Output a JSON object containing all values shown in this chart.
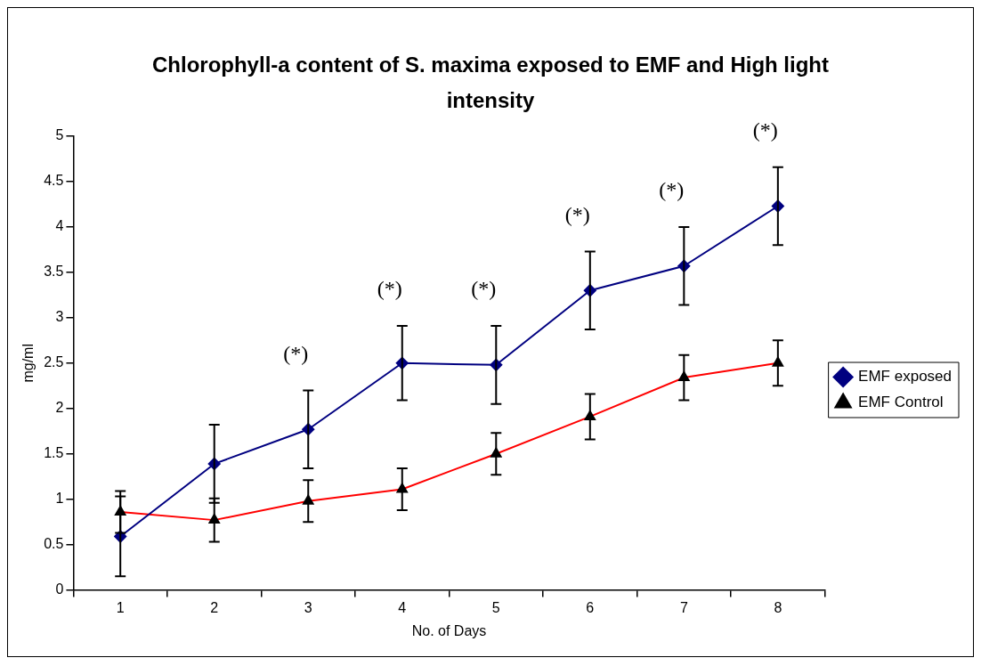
{
  "chart_data": {
    "type": "line",
    "title": "Chlorophyll-a content of S. maxima exposed to EMF and High light intensity",
    "xlabel": "No. of Days",
    "ylabel": "mg/ml",
    "categories": [
      "1",
      "2",
      "3",
      "4",
      "5",
      "6",
      "7",
      "8"
    ],
    "series": [
      {
        "name": "EMF exposed",
        "color": "#000080",
        "marker": "diamond",
        "values": [
          0.59,
          1.39,
          1.77,
          2.5,
          2.48,
          3.3,
          3.57,
          4.23
        ],
        "errors": [
          0.44,
          0.43,
          0.43,
          0.41,
          0.43,
          0.43,
          0.43,
          0.43
        ]
      },
      {
        "name": "EMF Control",
        "color": "#ff0000",
        "marker": "triangle",
        "colors": [
          "#000000",
          "#000000",
          "#000000",
          "#000000",
          "#000000",
          "#000000",
          "#000000",
          "#000000"
        ],
        "values": [
          0.86,
          0.77,
          0.98,
          1.11,
          1.5,
          1.91,
          2.34,
          2.5
        ],
        "errors": [
          0.23,
          0.24,
          0.23,
          0.23,
          0.23,
          0.25,
          0.25,
          0.25
        ]
      }
    ],
    "ylim": [
      0,
      5
    ],
    "yticks": [
      0,
      0.5,
      1,
      1.5,
      2,
      2.5,
      3,
      3.5,
      4,
      4.5,
      5
    ],
    "grid": false,
    "legend": "right",
    "annotations": [
      "(*)",
      "(*)",
      "(*)",
      "(*)",
      "(*)",
      "(*)"
    ]
  }
}
